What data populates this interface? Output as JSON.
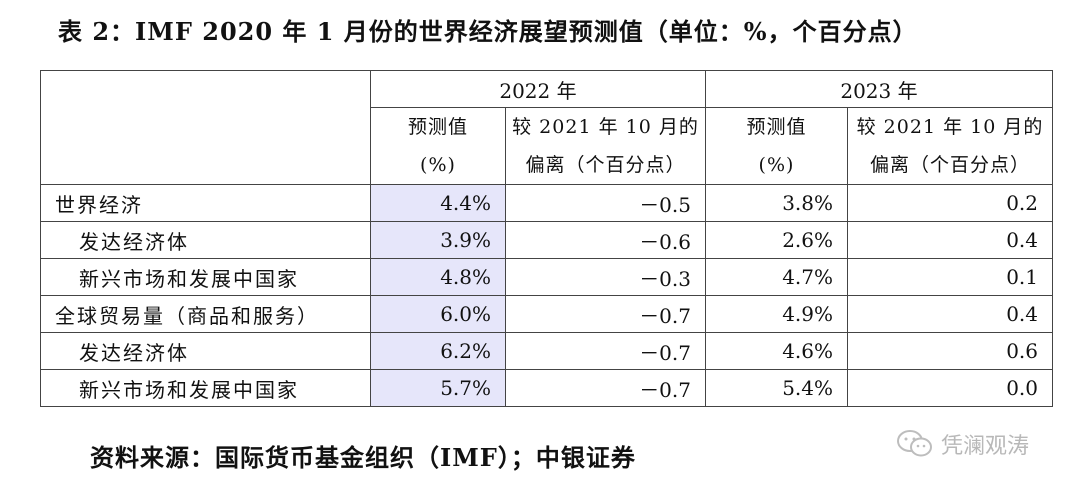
{
  "title": "表 2：IMF 2020 年 1 月份的世界经济展望预测值（单位：%，个百分点）",
  "table": {
    "years": [
      "2022 年",
      "2023 年"
    ],
    "sub_headers": {
      "forecast": [
        "预测值",
        "(%)"
      ],
      "deviation": [
        "较 2021 年 10 月的",
        "偏离（个百分点）"
      ]
    },
    "rows": [
      {
        "label": "世界经济",
        "v2022": "4.4%",
        "d2022": "－0.5",
        "v2023": "3.8%",
        "d2023": "0.2"
      },
      {
        "label": "发达经济体",
        "v2022": "3.9%",
        "d2022": "－0.6",
        "v2023": "2.6%",
        "d2023": "0.4"
      },
      {
        "label": "新兴市场和发展中国家",
        "v2022": "4.8%",
        "d2022": "－0.3",
        "v2023": "4.7%",
        "d2023": "0.1"
      },
      {
        "label": "全球贸易量（商品和服务）",
        "v2022": "6.0%",
        "d2022": "－0.7",
        "v2023": "4.9%",
        "d2023": "0.4"
      },
      {
        "label": "发达经济体",
        "v2022": "6.2%",
        "d2022": "－0.7",
        "v2023": "4.6%",
        "d2023": "0.6"
      },
      {
        "label": "新兴市场和发展中国家",
        "v2022": "5.7%",
        "d2022": "－0.7",
        "v2023": "5.4%",
        "d2023": "0.0"
      }
    ]
  },
  "footer": {
    "source": "资料来源：国际货币基金组织（IMF）；中银证券"
  },
  "watermark": {
    "text": "凭澜观涛",
    "icon": "wechat-icon"
  }
}
